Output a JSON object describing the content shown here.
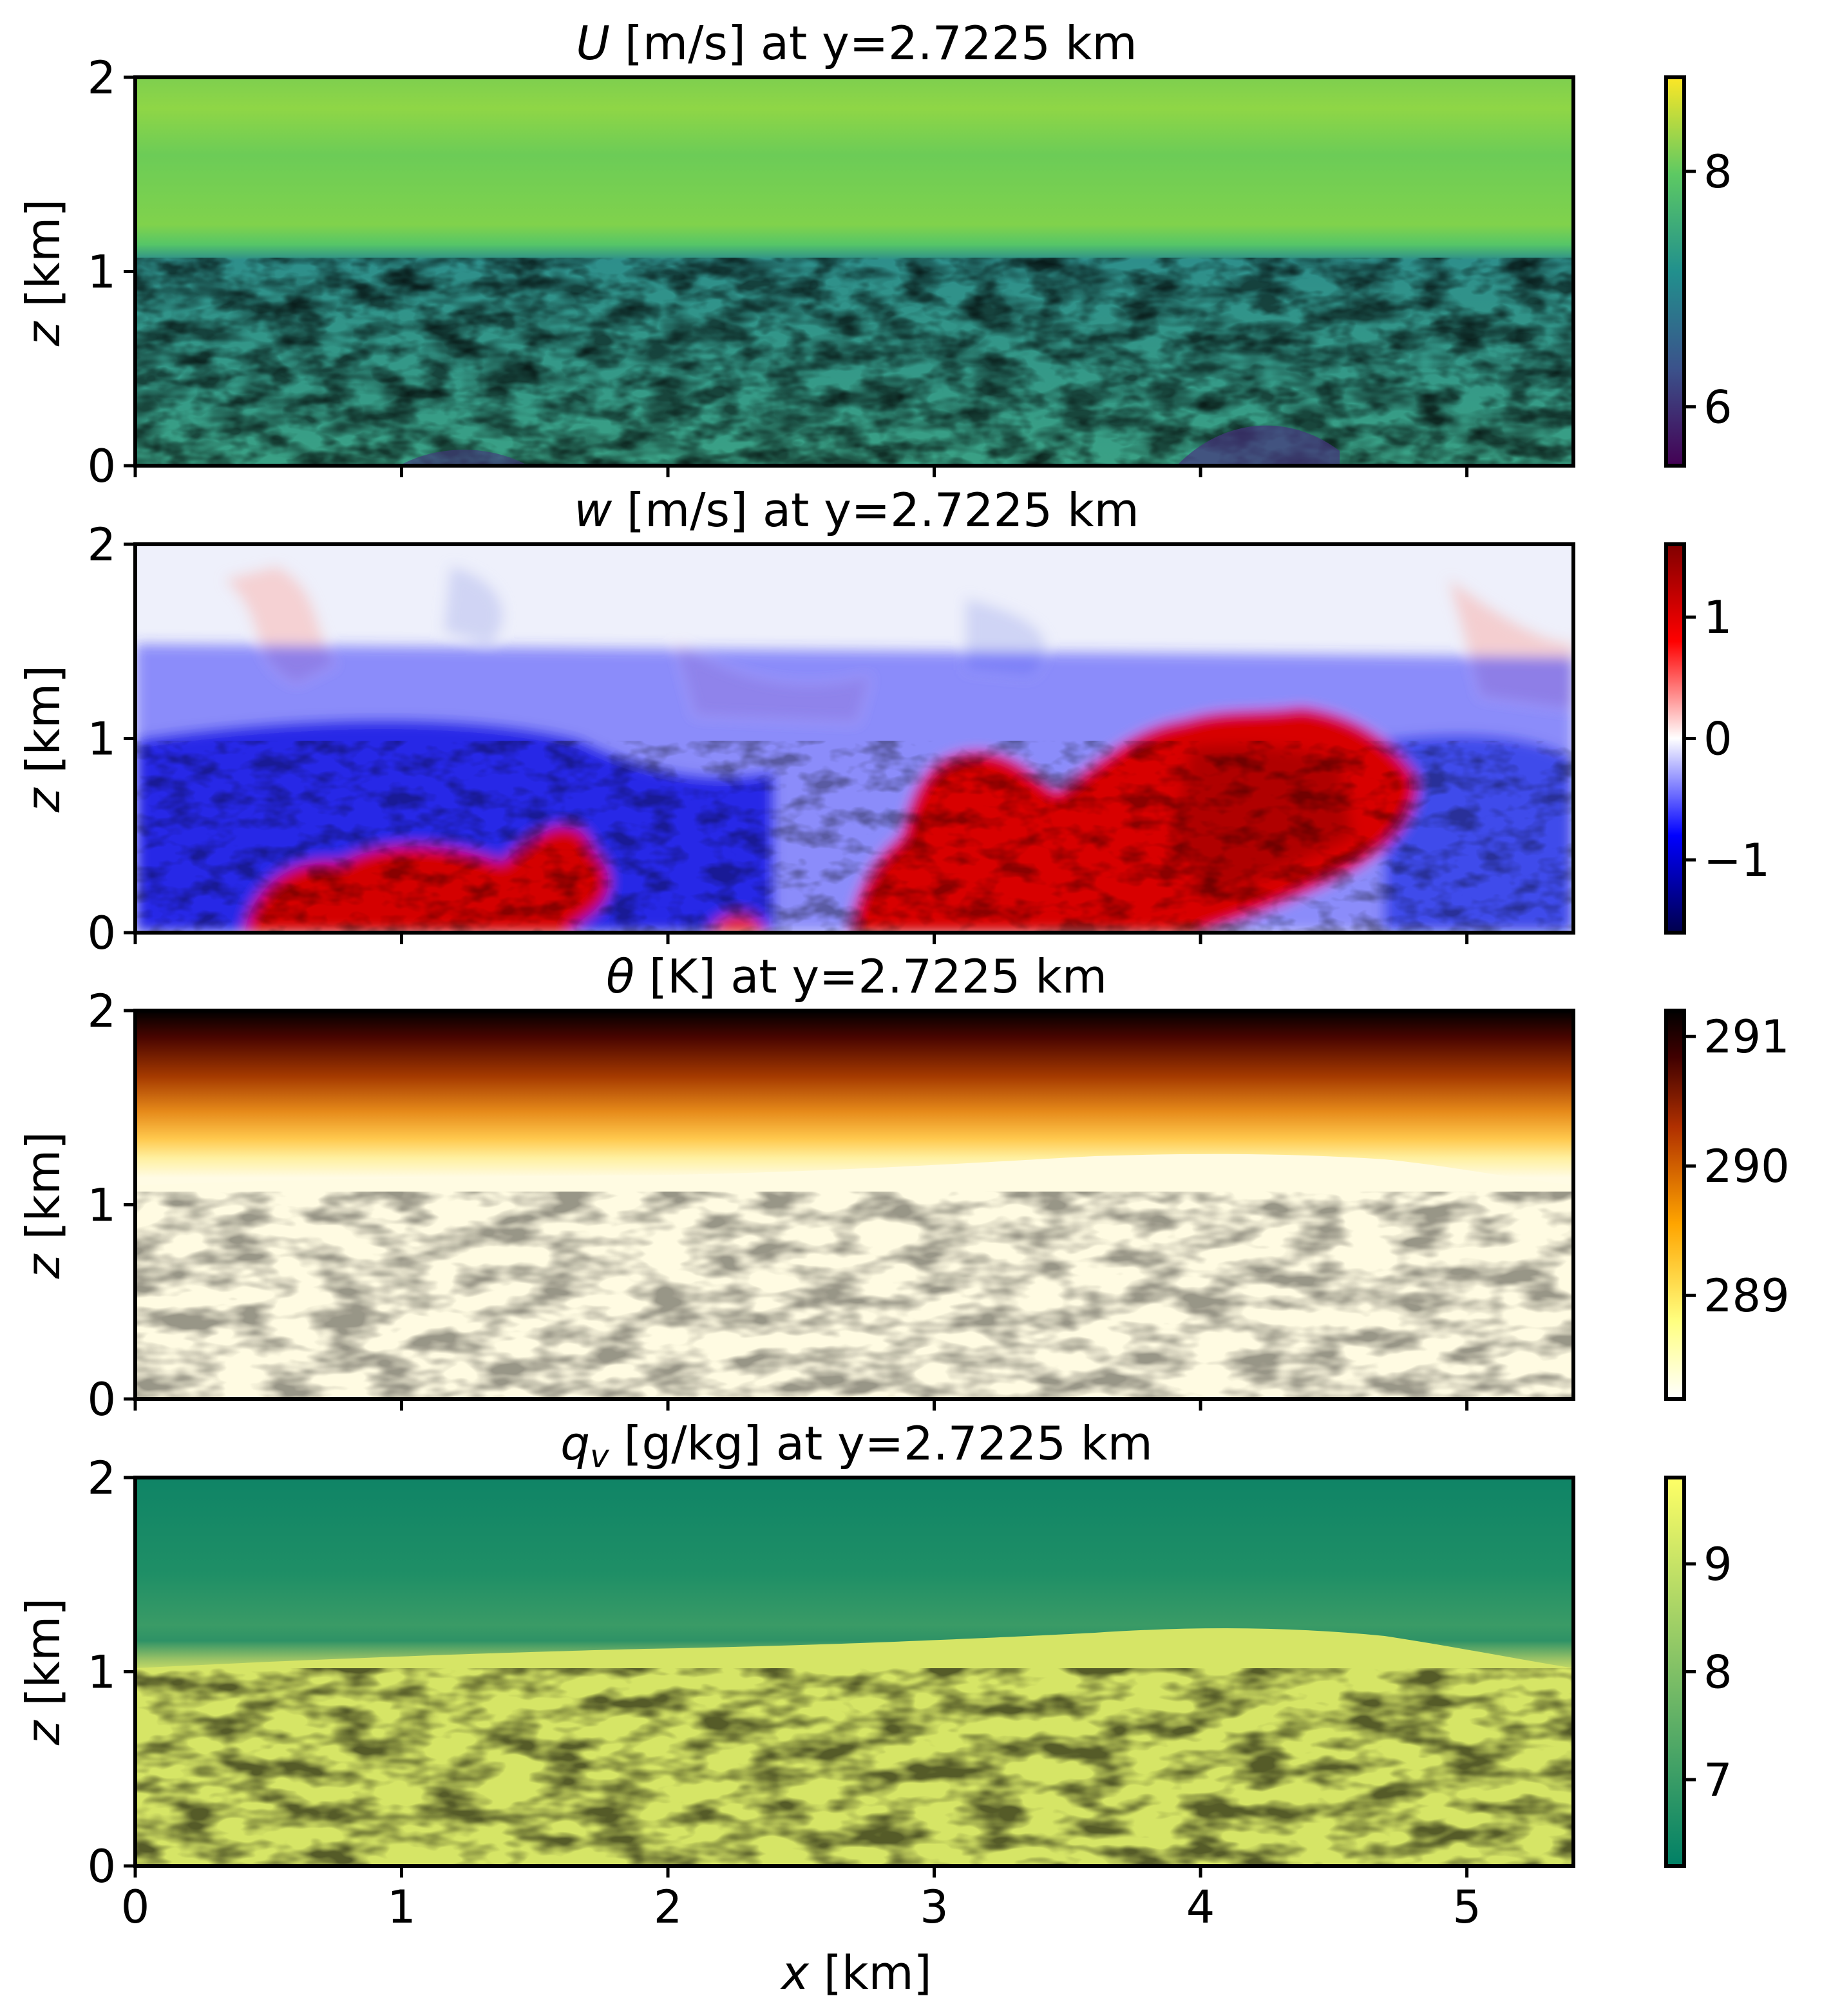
{
  "chart_data": [
    {
      "type": "heatmap",
      "title_var": "U",
      "title_rest": " [m/s] at y=2.7225 km",
      "xlabel": "",
      "ylabel_var": "z",
      "ylabel_rest": " [km]",
      "xlim": [
        0,
        5.4
      ],
      "ylim": [
        0,
        2
      ],
      "x_ticks": [
        0,
        1,
        2,
        3,
        4,
        5
      ],
      "x_ticklabels_shown": false,
      "y_ticks": [
        0,
        1,
        2
      ],
      "colormap": "viridis",
      "colorbar": {
        "range": [
          5.5,
          8.8
        ],
        "ticks": [
          6,
          8
        ]
      },
      "field": {
        "above_1_1km": {
          "mean": 8.1,
          "description_values": [
            7.9,
            8.3
          ]
        },
        "below_1_1km": {
          "min": 5.6,
          "max": 8.8,
          "mean": 7.3
        }
      }
    },
    {
      "type": "heatmap",
      "title_var": "w",
      "title_rest": " [m/s] at y=2.7225 km",
      "xlabel": "",
      "ylabel_var": "z",
      "ylabel_rest": " [km]",
      "xlim": [
        0,
        5.4
      ],
      "ylim": [
        0,
        2
      ],
      "x_ticks": [
        0,
        1,
        2,
        3,
        4,
        5
      ],
      "x_ticklabels_shown": false,
      "y_ticks": [
        0,
        1,
        2
      ],
      "colormap": "seismic",
      "colorbar": {
        "range": [
          -1.6,
          1.6
        ],
        "ticks": [
          -1,
          0,
          1
        ],
        "ticklabels": [
          "−1",
          "0",
          "1"
        ]
      },
      "field": {
        "updraft_regions_km": [
          [
            0.9,
            1.8
          ],
          [
            2.8,
            4.8
          ]
        ],
        "downdraft_regions_km": [
          [
            0,
            0.9
          ],
          [
            1.5,
            2.6
          ],
          [
            4.8,
            5.4
          ]
        ],
        "extremes": [
          -1.6,
          1.6
        ]
      }
    },
    {
      "type": "heatmap",
      "title_var": "θ",
      "title_rest": " [K] at y=2.7225 km",
      "xlabel": "",
      "ylabel_var": "z",
      "ylabel_rest": " [km]",
      "xlim": [
        0,
        5.4
      ],
      "ylim": [
        0,
        2
      ],
      "x_ticks": [
        0,
        1,
        2,
        3,
        4,
        5
      ],
      "x_ticklabels_shown": false,
      "y_ticks": [
        0,
        1,
        2
      ],
      "colormap": "afmhot_r",
      "colorbar": {
        "range": [
          288.2,
          291.2
        ],
        "ticks": [
          289,
          290,
          291
        ]
      },
      "field": {
        "mixed_layer_value": 288.3,
        "inversion_height_km": 1.15,
        "top_value": 291.2
      }
    },
    {
      "type": "heatmap",
      "title_var": "q",
      "title_sub": "v",
      "title_rest": " [g/kg] at y=2.7225 km",
      "xlabel_var": "x",
      "xlabel_rest": " [km]",
      "ylabel_var": "z",
      "ylabel_rest": " [km]",
      "xlim": [
        0,
        5.4
      ],
      "ylim": [
        0,
        2
      ],
      "x_ticks": [
        0,
        1,
        2,
        3,
        4,
        5
      ],
      "x_ticklabels_shown": true,
      "y_ticks": [
        0,
        1,
        2
      ],
      "colormap": "summer",
      "colorbar": {
        "range": [
          6.2,
          9.8
        ],
        "ticks": [
          7,
          8,
          9
        ]
      },
      "field": {
        "mixed_layer_value": 9.2,
        "inversion_height_km": 1.15,
        "top_value": 6.5
      }
    }
  ]
}
